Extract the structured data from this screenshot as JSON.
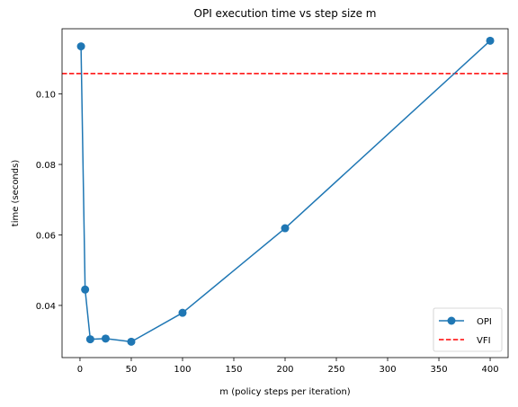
{
  "chart_data": {
    "type": "line",
    "title": "OPI execution time vs step size m",
    "xlabel": "m (policy steps per iteration)",
    "ylabel": "time (seconds)",
    "xlim": [
      -17.5,
      417.5
    ],
    "ylim": [
      0.0252,
      0.1185
    ],
    "xticks": [
      0,
      50,
      100,
      150,
      200,
      250,
      300,
      350,
      400
    ],
    "yticks": [
      0.04,
      0.06,
      0.08,
      0.1
    ],
    "ytick_labels": [
      "0.04",
      "0.06",
      "0.08",
      "0.10"
    ],
    "grid": false,
    "legend_position": "lower-right",
    "series": [
      {
        "name": "OPI",
        "style": "line-with-markers",
        "color": "#1f77b4",
        "x": [
          1,
          5,
          10,
          25,
          50,
          100,
          200,
          400
        ],
        "y": [
          0.1135,
          0.0445,
          0.0304,
          0.0306,
          0.0297,
          0.0379,
          0.0619,
          0.1151
        ]
      },
      {
        "name": "VFI",
        "style": "dashed-horizontal",
        "color": "#ff0000",
        "y": 0.1058
      }
    ]
  }
}
